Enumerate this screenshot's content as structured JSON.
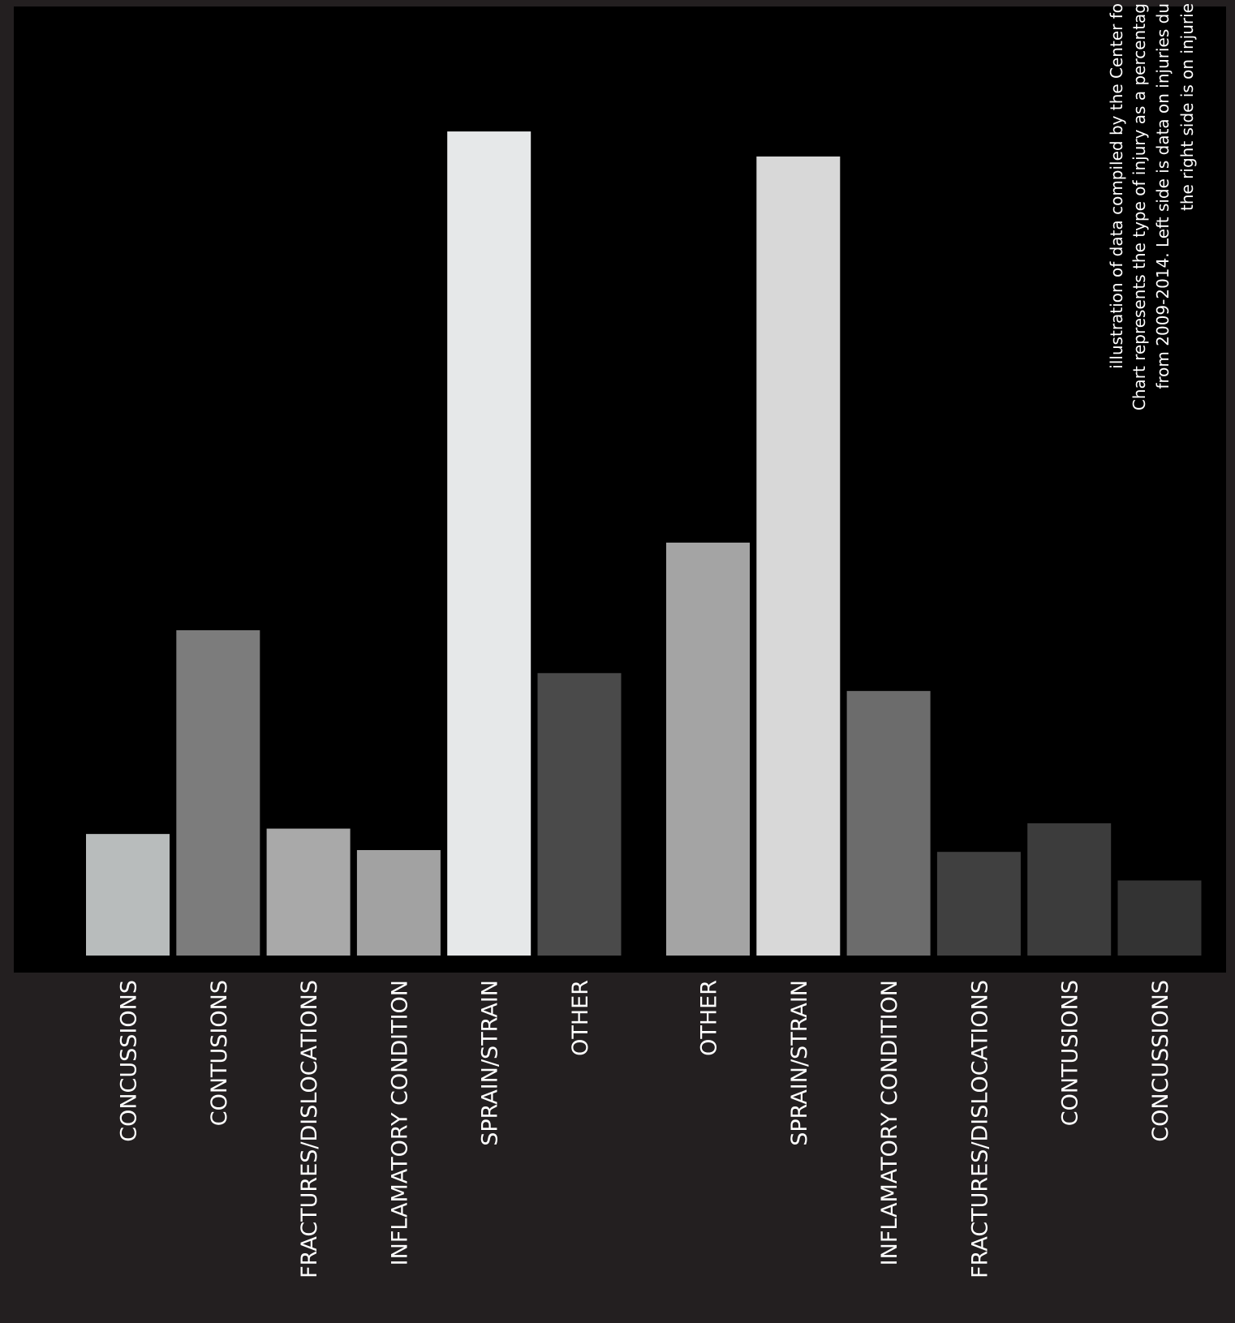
{
  "chart_data": {
    "type": "bar",
    "annotation": [
      "illustration of data compiled by the Center fo",
      "Chart  represents the type of injury as a percentag",
      "from 2009-2014. Left side is data on injuries du",
      "the right side is on  injurie"
    ],
    "ylim": [
      0,
      53
    ],
    "groups": [
      {
        "categories": [
          "CONCUSSIONS",
          "CONTUSIONS",
          "FRACTURES/DISLOCATIONS",
          "INFLAMATORY CONDITION",
          "SPRAIN/STRAIN",
          "OTHER"
        ],
        "values": [
          6.8,
          18.2,
          7.1,
          5.9,
          46.1,
          15.8
        ],
        "colors": [
          "#b8bcbc",
          "#7c7c7c",
          "#a9a9a9",
          "#a2a2a2",
          "#e6e8e9",
          "#4a4a4a"
        ]
      },
      {
        "categories": [
          "OTHER",
          "SPRAIN/STRAIN",
          "INFLAMATORY CONDITION",
          "FRACTURES/DISLOCATIONS",
          "CONTUSIONS",
          "CONCUSSIONS"
        ],
        "values": [
          23.1,
          44.7,
          14.8,
          5.8,
          7.4,
          4.2
        ],
        "colors": [
          "#a4a4a4",
          "#d8d8d8",
          "#6c6c6c",
          "#404040",
          "#3c3c3c",
          "#333333"
        ]
      }
    ]
  }
}
